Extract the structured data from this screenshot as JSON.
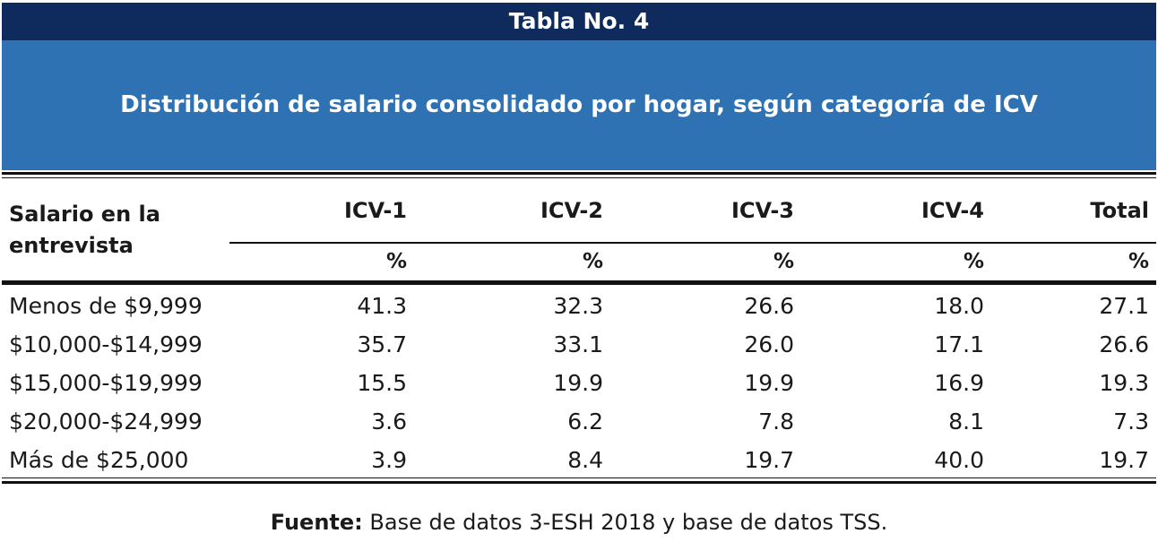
{
  "table": {
    "number_title": "Tabla No. 4",
    "title": "Distribución de salario consolidado por hogar, según categoría de ICV",
    "row_header": "Salario en la entrevista",
    "columns": [
      "ICV-1",
      "ICV-2",
      "ICV-3",
      "ICV-4",
      "Total"
    ],
    "units": [
      "%",
      "%",
      "%",
      "%",
      "%"
    ],
    "rows": [
      {
        "label": "Menos de $9,999",
        "values": [
          "41.3",
          "32.3",
          "26.6",
          "18.0",
          "27.1"
        ]
      },
      {
        "label": "$10,000-$14,999",
        "values": [
          "35.7",
          "33.1",
          "26.0",
          "17.1",
          "26.6"
        ]
      },
      {
        "label": "$15,000-$19,999",
        "values": [
          "15.5",
          "19.9",
          "19.9",
          "16.9",
          "19.3"
        ]
      },
      {
        "label": "$20,000-$24,999",
        "values": [
          "3.6",
          "6.2",
          "7.8",
          "8.1",
          "7.3"
        ]
      },
      {
        "label": "Más de $25,000",
        "values": [
          "3.9",
          "8.4",
          "19.7",
          "40.0",
          "19.7"
        ]
      }
    ]
  },
  "source": {
    "label": "Fuente:",
    "text": "Base de datos 3-ESH 2018 y base de datos TSS."
  },
  "colors": {
    "title_bar": "#0f2a5c",
    "subtitle_band": "#2f72b3"
  }
}
